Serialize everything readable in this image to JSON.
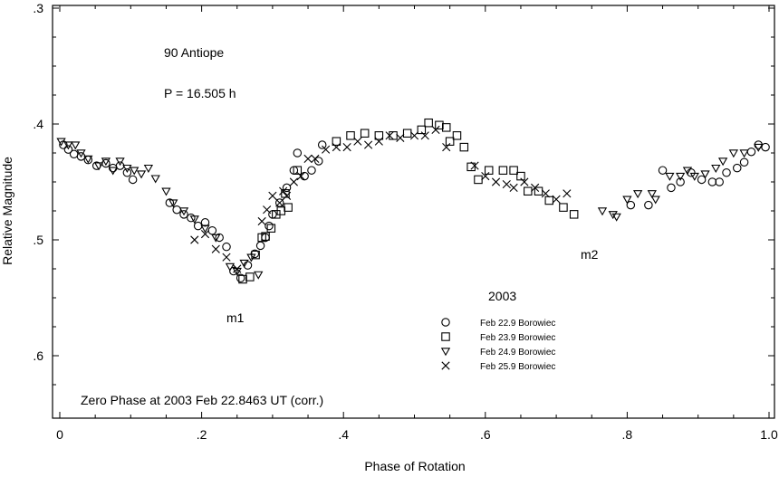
{
  "chart_data": {
    "type": "scatter",
    "xlabel": "Phase of Rotation",
    "ylabel": "Relative Magnitude",
    "xlim": [
      0,
      1
    ],
    "ylim": [
      0.3,
      0.65
    ],
    "y_inverted": true,
    "grid": false,
    "legend_placement": "bottom-center",
    "x_ticks": [
      {
        "value": 0.0,
        "label": "0"
      },
      {
        "value": 0.2,
        "label": ".2"
      },
      {
        "value": 0.4,
        "label": ".4"
      },
      {
        "value": 0.6,
        "label": ".6"
      },
      {
        "value": 0.8,
        "label": ".8"
      },
      {
        "value": 1.0,
        "label": "1.0"
      }
    ],
    "y_ticks": [
      {
        "value": 0.3,
        "label": ".3"
      },
      {
        "value": 0.4,
        "label": ".4"
      },
      {
        "value": 0.5,
        "label": ".5"
      },
      {
        "value": 0.6,
        "label": ".6"
      }
    ],
    "annotations": {
      "object": "90 Antiope",
      "period": "P = 16.505 h",
      "year": "2003",
      "zero_phase": "Zero Phase at 2003 Feb 22.8463 UT (corr.)",
      "minimum1": "m1",
      "minimum2": "m2"
    },
    "series": [
      {
        "name": "Feb 22.9 Borowiec",
        "marker": "circle",
        "points": [
          [
            0.005,
            0.418
          ],
          [
            0.012,
            0.422
          ],
          [
            0.02,
            0.426
          ],
          [
            0.03,
            0.428
          ],
          [
            0.04,
            0.431
          ],
          [
            0.052,
            0.436
          ],
          [
            0.065,
            0.434
          ],
          [
            0.075,
            0.438
          ],
          [
            0.085,
            0.436
          ],
          [
            0.095,
            0.442
          ],
          [
            0.103,
            0.448
          ],
          [
            0.155,
            0.468
          ],
          [
            0.165,
            0.474
          ],
          [
            0.175,
            0.478
          ],
          [
            0.185,
            0.481
          ],
          [
            0.195,
            0.488
          ],
          [
            0.205,
            0.485
          ],
          [
            0.215,
            0.492
          ],
          [
            0.225,
            0.498
          ],
          [
            0.235,
            0.506
          ],
          [
            0.245,
            0.527
          ],
          [
            0.255,
            0.533
          ],
          [
            0.265,
            0.522
          ],
          [
            0.275,
            0.512
          ],
          [
            0.283,
            0.505
          ],
          [
            0.29,
            0.498
          ],
          [
            0.295,
            0.488
          ],
          [
            0.3,
            0.478
          ],
          [
            0.31,
            0.468
          ],
          [
            0.32,
            0.455
          ],
          [
            0.33,
            0.44
          ],
          [
            0.335,
            0.425
          ],
          [
            0.345,
            0.445
          ],
          [
            0.355,
            0.44
          ],
          [
            0.365,
            0.432
          ],
          [
            0.37,
            0.418
          ],
          [
            0.805,
            0.47
          ],
          [
            0.83,
            0.47
          ],
          [
            0.85,
            0.44
          ],
          [
            0.862,
            0.455
          ],
          [
            0.875,
            0.45
          ],
          [
            0.89,
            0.442
          ],
          [
            0.905,
            0.448
          ],
          [
            0.92,
            0.45
          ],
          [
            0.93,
            0.45
          ],
          [
            0.94,
            0.442
          ],
          [
            0.955,
            0.438
          ],
          [
            0.965,
            0.433
          ],
          [
            0.975,
            0.424
          ],
          [
            0.985,
            0.418
          ],
          [
            0.995,
            0.42
          ]
        ]
      },
      {
        "name": "Feb 23.9 Borowiec",
        "marker": "square",
        "points": [
          [
            0.258,
            0.534
          ],
          [
            0.268,
            0.532
          ],
          [
            0.276,
            0.513
          ],
          [
            0.285,
            0.498
          ],
          [
            0.29,
            0.497
          ],
          [
            0.298,
            0.49
          ],
          [
            0.305,
            0.478
          ],
          [
            0.312,
            0.475
          ],
          [
            0.318,
            0.46
          ],
          [
            0.322,
            0.472
          ],
          [
            0.335,
            0.44
          ],
          [
            0.39,
            0.415
          ],
          [
            0.41,
            0.41
          ],
          [
            0.43,
            0.408
          ],
          [
            0.45,
            0.41
          ],
          [
            0.47,
            0.41
          ],
          [
            0.49,
            0.408
          ],
          [
            0.51,
            0.405
          ],
          [
            0.52,
            0.399
          ],
          [
            0.535,
            0.401
          ],
          [
            0.545,
            0.403
          ],
          [
            0.55,
            0.415
          ],
          [
            0.56,
            0.41
          ],
          [
            0.57,
            0.42
          ],
          [
            0.58,
            0.437
          ],
          [
            0.59,
            0.448
          ],
          [
            0.605,
            0.44
          ],
          [
            0.625,
            0.44
          ],
          [
            0.64,
            0.44
          ],
          [
            0.65,
            0.445
          ],
          [
            0.66,
            0.458
          ],
          [
            0.675,
            0.458
          ],
          [
            0.69,
            0.466
          ],
          [
            0.71,
            0.472
          ],
          [
            0.725,
            0.478
          ]
        ]
      },
      {
        "name": "Feb 24.9 Borowiec",
        "marker": "triangle-down",
        "points": [
          [
            0.002,
            0.415
          ],
          [
            0.012,
            0.418
          ],
          [
            0.022,
            0.418
          ],
          [
            0.03,
            0.425
          ],
          [
            0.04,
            0.43
          ],
          [
            0.055,
            0.436
          ],
          [
            0.065,
            0.432
          ],
          [
            0.075,
            0.44
          ],
          [
            0.085,
            0.432
          ],
          [
            0.095,
            0.438
          ],
          [
            0.105,
            0.44
          ],
          [
            0.115,
            0.443
          ],
          [
            0.125,
            0.438
          ],
          [
            0.135,
            0.447
          ],
          [
            0.15,
            0.458
          ],
          [
            0.16,
            0.468
          ],
          [
            0.175,
            0.475
          ],
          [
            0.19,
            0.482
          ],
          [
            0.205,
            0.49
          ],
          [
            0.22,
            0.498
          ],
          [
            0.24,
            0.523
          ],
          [
            0.25,
            0.527
          ],
          [
            0.26,
            0.52
          ],
          [
            0.27,
            0.515
          ],
          [
            0.28,
            0.53
          ],
          [
            0.765,
            0.475
          ],
          [
            0.78,
            0.478
          ],
          [
            0.785,
            0.48
          ],
          [
            0.8,
            0.465
          ],
          [
            0.815,
            0.46
          ],
          [
            0.835,
            0.46
          ],
          [
            0.84,
            0.465
          ],
          [
            0.86,
            0.445
          ],
          [
            0.875,
            0.445
          ],
          [
            0.885,
            0.44
          ],
          [
            0.895,
            0.445
          ],
          [
            0.91,
            0.443
          ],
          [
            0.925,
            0.438
          ],
          [
            0.935,
            0.432
          ],
          [
            0.95,
            0.425
          ],
          [
            0.965,
            0.425
          ],
          [
            0.985,
            0.42
          ]
        ]
      },
      {
        "name": "Feb 25.9 Borowiec",
        "marker": "x",
        "points": [
          [
            0.19,
            0.5
          ],
          [
            0.205,
            0.495
          ],
          [
            0.22,
            0.508
          ],
          [
            0.235,
            0.515
          ],
          [
            0.25,
            0.525
          ],
          [
            0.285,
            0.484
          ],
          [
            0.292,
            0.474
          ],
          [
            0.3,
            0.462
          ],
          [
            0.31,
            0.468
          ],
          [
            0.315,
            0.458
          ],
          [
            0.32,
            0.462
          ],
          [
            0.33,
            0.45
          ],
          [
            0.34,
            0.445
          ],
          [
            0.35,
            0.43
          ],
          [
            0.36,
            0.43
          ],
          [
            0.375,
            0.422
          ],
          [
            0.39,
            0.42
          ],
          [
            0.405,
            0.42
          ],
          [
            0.42,
            0.415
          ],
          [
            0.435,
            0.418
          ],
          [
            0.45,
            0.415
          ],
          [
            0.465,
            0.41
          ],
          [
            0.48,
            0.412
          ],
          [
            0.5,
            0.41
          ],
          [
            0.515,
            0.41
          ],
          [
            0.53,
            0.405
          ],
          [
            0.545,
            0.42
          ],
          [
            0.585,
            0.436
          ],
          [
            0.6,
            0.445
          ],
          [
            0.615,
            0.45
          ],
          [
            0.63,
            0.452
          ],
          [
            0.64,
            0.455
          ],
          [
            0.655,
            0.45
          ],
          [
            0.67,
            0.455
          ],
          [
            0.685,
            0.46
          ],
          [
            0.7,
            0.465
          ],
          [
            0.715,
            0.46
          ]
        ]
      }
    ]
  }
}
